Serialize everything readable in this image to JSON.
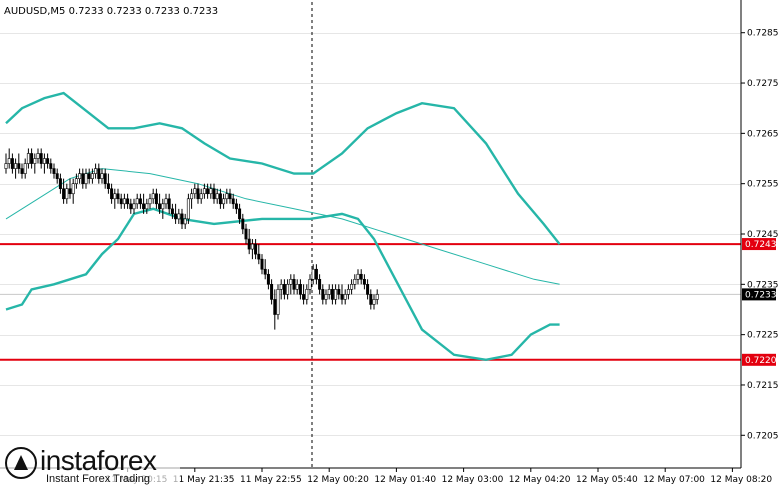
{
  "chart_data": {
    "type": "candlestick",
    "symbol_header": "AUDUSD,M5  0.7233 0.7233 0.7233 0.7233",
    "y_ticks": [
      "0.7285",
      "0.7275",
      "0.7265",
      "0.7255",
      "0.7245",
      "0.7235",
      "0.7225",
      "0.7215",
      "0.7205"
    ],
    "y_tick_values": [
      0.7285,
      0.7275,
      0.7265,
      0.7255,
      0.7245,
      0.7235,
      0.7225,
      0.7215,
      0.7205
    ],
    "ylim": [
      0.71985,
      0.72915
    ],
    "x_ticks": [
      "11 May 20:15",
      "11 May 21:35",
      "11 May 22:55",
      "12 May 00:20",
      "12 May 01:40",
      "12 May 03:00",
      "12 May 04:20",
      "12 May 05:40",
      "12 May 07:00",
      "12 May 08:20"
    ],
    "x_tick_index": [
      38,
      59,
      80,
      101,
      122,
      143,
      164,
      185,
      206,
      227
    ],
    "levels": [
      {
        "value": 0.7243,
        "label": "0.7243",
        "color": "#e3000f"
      },
      {
        "value": 0.722,
        "label": "0.7220",
        "color": "#e3000f"
      }
    ],
    "current_price": {
      "value": 0.7233,
      "label": "0.7233",
      "color": "#000000"
    },
    "bollinger": {
      "color": "#26b6a8",
      "upper": [
        [
          0,
          0.7267
        ],
        [
          5,
          0.727
        ],
        [
          12,
          0.7272
        ],
        [
          18,
          0.7273
        ],
        [
          26,
          0.7269
        ],
        [
          32,
          0.7266
        ],
        [
          40,
          0.7266
        ],
        [
          48,
          0.7267
        ],
        [
          55,
          0.7266
        ],
        [
          62,
          0.7263
        ],
        [
          70,
          0.726
        ],
        [
          80,
          0.7259
        ],
        [
          90,
          0.7257
        ],
        [
          96,
          0.7257
        ],
        [
          105,
          0.7261
        ],
        [
          113,
          0.7266
        ],
        [
          122,
          0.7269
        ],
        [
          130,
          0.7271
        ],
        [
          140,
          0.727
        ],
        [
          150,
          0.7263
        ],
        [
          160,
          0.7253
        ],
        [
          168,
          0.7247
        ],
        [
          173,
          0.7243
        ]
      ],
      "middle": [
        [
          0,
          0.7248
        ],
        [
          10,
          0.7252
        ],
        [
          20,
          0.7256
        ],
        [
          30,
          0.7258
        ],
        [
          45,
          0.7257
        ],
        [
          60,
          0.7255
        ],
        [
          75,
          0.7252
        ],
        [
          90,
          0.725
        ],
        [
          105,
          0.7248
        ],
        [
          120,
          0.7245
        ],
        [
          135,
          0.7242
        ],
        [
          150,
          0.7239
        ],
        [
          165,
          0.7236
        ],
        [
          173,
          0.7235
        ]
      ],
      "lower": [
        [
          0,
          0.723
        ],
        [
          5,
          0.7231
        ],
        [
          8,
          0.7234
        ],
        [
          15,
          0.7235
        ],
        [
          25,
          0.7237
        ],
        [
          30,
          0.7241
        ],
        [
          35,
          0.7244
        ],
        [
          40,
          0.7249
        ],
        [
          46,
          0.725
        ],
        [
          55,
          0.7248
        ],
        [
          65,
          0.7247
        ],
        [
          80,
          0.7248
        ],
        [
          95,
          0.7248
        ],
        [
          105,
          0.7249
        ],
        [
          110,
          0.7248
        ],
        [
          115,
          0.7244
        ],
        [
          125,
          0.7232
        ],
        [
          130,
          0.7226
        ],
        [
          140,
          0.7221
        ],
        [
          150,
          0.722
        ],
        [
          158,
          0.7221
        ],
        [
          164,
          0.7225
        ],
        [
          170,
          0.7227
        ],
        [
          173,
          0.7227
        ]
      ]
    },
    "candles": [
      [
        0.7258,
        0.7261,
        0.7257,
        0.7259
      ],
      [
        0.7259,
        0.7262,
        0.7258,
        0.726
      ],
      [
        0.726,
        0.7261,
        0.7257,
        0.7258
      ],
      [
        0.7258,
        0.726,
        0.7256,
        0.7259
      ],
      [
        0.7259,
        0.7261,
        0.7257,
        0.7258
      ],
      [
        0.7258,
        0.7259,
        0.7256,
        0.7257
      ],
      [
        0.7257,
        0.726,
        0.7256,
        0.7259
      ],
      [
        0.7259,
        0.7262,
        0.7258,
        0.7261
      ],
      [
        0.7261,
        0.7262,
        0.7258,
        0.7259
      ],
      [
        0.7259,
        0.7261,
        0.7257,
        0.726
      ],
      [
        0.726,
        0.7262,
        0.7259,
        0.7261
      ],
      [
        0.7261,
        0.7262,
        0.7258,
        0.7259
      ],
      [
        0.7259,
        0.7261,
        0.7257,
        0.726
      ],
      [
        0.726,
        0.7261,
        0.7258,
        0.7259
      ],
      [
        0.7259,
        0.726,
        0.7257,
        0.7258
      ],
      [
        0.7258,
        0.7259,
        0.7256,
        0.7257
      ],
      [
        0.7257,
        0.7258,
        0.7255,
        0.7256
      ],
      [
        0.7256,
        0.7257,
        0.7253,
        0.7254
      ],
      [
        0.7254,
        0.7256,
        0.7251,
        0.7252
      ],
      [
        0.7252,
        0.7255,
        0.7251,
        0.7254
      ],
      [
        0.7254,
        0.7256,
        0.7252,
        0.7253
      ],
      [
        0.7253,
        0.7256,
        0.7251,
        0.7255
      ],
      [
        0.7255,
        0.7257,
        0.7254,
        0.7256
      ],
      [
        0.7256,
        0.7258,
        0.7255,
        0.7257
      ],
      [
        0.7257,
        0.7258,
        0.7254,
        0.7255
      ],
      [
        0.7255,
        0.7258,
        0.7254,
        0.7257
      ],
      [
        0.7257,
        0.7258,
        0.7255,
        0.7256
      ],
      [
        0.7256,
        0.7258,
        0.7255,
        0.7257
      ],
      [
        0.7257,
        0.7259,
        0.7256,
        0.7258
      ],
      [
        0.7258,
        0.7259,
        0.7255,
        0.7256
      ],
      [
        0.7256,
        0.7258,
        0.7255,
        0.7257
      ],
      [
        0.7257,
        0.7258,
        0.7254,
        0.7255
      ],
      [
        0.7255,
        0.7257,
        0.7253,
        0.7254
      ],
      [
        0.7254,
        0.7255,
        0.7251,
        0.7252
      ],
      [
        0.7252,
        0.7254,
        0.725,
        0.7253
      ],
      [
        0.7253,
        0.7254,
        0.7251,
        0.7252
      ],
      [
        0.7252,
        0.7253,
        0.725,
        0.7251
      ],
      [
        0.7251,
        0.7253,
        0.725,
        0.7252
      ],
      [
        0.7252,
        0.7253,
        0.725,
        0.7251
      ],
      [
        0.7251,
        0.7252,
        0.7249,
        0.725
      ],
      [
        0.725,
        0.7252,
        0.7249,
        0.7251
      ],
      [
        0.7251,
        0.7253,
        0.725,
        0.7252
      ],
      [
        0.7252,
        0.7253,
        0.725,
        0.7251
      ],
      [
        0.7251,
        0.7253,
        0.7249,
        0.725
      ],
      [
        0.725,
        0.7252,
        0.7249,
        0.7251
      ],
      [
        0.7251,
        0.7253,
        0.725,
        0.7252
      ],
      [
        0.7252,
        0.7254,
        0.7251,
        0.7253
      ],
      [
        0.7253,
        0.7254,
        0.725,
        0.7251
      ],
      [
        0.7251,
        0.7253,
        0.7249,
        0.725
      ],
      [
        0.725,
        0.7252,
        0.7248,
        0.7251
      ],
      [
        0.7251,
        0.7253,
        0.725,
        0.7252
      ],
      [
        0.7252,
        0.7253,
        0.7249,
        0.725
      ],
      [
        0.725,
        0.7251,
        0.7248,
        0.7249
      ],
      [
        0.7249,
        0.7251,
        0.7247,
        0.7248
      ],
      [
        0.7248,
        0.725,
        0.7247,
        0.7249
      ],
      [
        0.7249,
        0.725,
        0.7246,
        0.7247
      ],
      [
        0.7247,
        0.7249,
        0.7246,
        0.7248
      ],
      [
        0.7248,
        0.7253,
        0.7247,
        0.7252
      ],
      [
        0.7252,
        0.7254,
        0.725,
        0.7253
      ],
      [
        0.7253,
        0.7255,
        0.7252,
        0.7254
      ],
      [
        0.7254,
        0.7255,
        0.7251,
        0.7252
      ],
      [
        0.7252,
        0.7254,
        0.7251,
        0.7253
      ],
      [
        0.7253,
        0.7255,
        0.7252,
        0.7254
      ],
      [
        0.7254,
        0.7255,
        0.7252,
        0.7253
      ],
      [
        0.7253,
        0.7255,
        0.7252,
        0.7254
      ],
      [
        0.7254,
        0.7255,
        0.7251,
        0.7252
      ],
      [
        0.7252,
        0.7254,
        0.7251,
        0.7253
      ],
      [
        0.7253,
        0.7254,
        0.725,
        0.7251
      ],
      [
        0.7251,
        0.7253,
        0.725,
        0.7252
      ],
      [
        0.7252,
        0.7254,
        0.7251,
        0.7253
      ],
      [
        0.7253,
        0.7254,
        0.7251,
        0.7252
      ],
      [
        0.7252,
        0.7253,
        0.725,
        0.7251
      ],
      [
        0.7251,
        0.7252,
        0.7249,
        0.725
      ],
      [
        0.725,
        0.7251,
        0.7247,
        0.7248
      ],
      [
        0.7248,
        0.7249,
        0.7245,
        0.7246
      ],
      [
        0.7246,
        0.7247,
        0.7243,
        0.7244
      ],
      [
        0.7244,
        0.7246,
        0.7241,
        0.7242
      ],
      [
        0.7242,
        0.7244,
        0.724,
        0.7243
      ],
      [
        0.7243,
        0.7244,
        0.724,
        0.7241
      ],
      [
        0.7241,
        0.7243,
        0.7239,
        0.724
      ],
      [
        0.724,
        0.7241,
        0.7237,
        0.7238
      ],
      [
        0.7238,
        0.724,
        0.7236,
        0.7237
      ],
      [
        0.7237,
        0.7238,
        0.7234,
        0.7235
      ],
      [
        0.7235,
        0.7236,
        0.7231,
        0.7232
      ],
      [
        0.7232,
        0.7234,
        0.7226,
        0.7229
      ],
      [
        0.7229,
        0.7235,
        0.7228,
        0.7234
      ],
      [
        0.7234,
        0.7236,
        0.7232,
        0.7235
      ],
      [
        0.7235,
        0.7236,
        0.7232,
        0.7233
      ],
      [
        0.7233,
        0.7236,
        0.7232,
        0.7235
      ],
      [
        0.7235,
        0.7237,
        0.7233,
        0.7236
      ],
      [
        0.7236,
        0.7237,
        0.7233,
        0.7234
      ],
      [
        0.7234,
        0.7236,
        0.7233,
        0.7235
      ],
      [
        0.7235,
        0.7236,
        0.7232,
        0.7233
      ],
      [
        0.7233,
        0.7235,
        0.7231,
        0.7232
      ],
      [
        0.7232,
        0.7235,
        0.7231,
        0.7234
      ],
      [
        0.7234,
        0.7237,
        0.7233,
        0.7236
      ],
      [
        0.7236,
        0.7239,
        0.7235,
        0.7238
      ],
      [
        0.7238,
        0.7239,
        0.7235,
        0.7236
      ],
      [
        0.7236,
        0.7237,
        0.7233,
        0.7234
      ],
      [
        0.7234,
        0.7235,
        0.7231,
        0.7232
      ],
      [
        0.7232,
        0.7234,
        0.7231,
        0.7233
      ],
      [
        0.7233,
        0.7235,
        0.7232,
        0.7234
      ],
      [
        0.7234,
        0.7235,
        0.7231,
        0.7232
      ],
      [
        0.7232,
        0.7235,
        0.7231,
        0.7234
      ],
      [
        0.7234,
        0.7235,
        0.7232,
        0.7233
      ],
      [
        0.7233,
        0.7235,
        0.7231,
        0.7232
      ],
      [
        0.7232,
        0.7234,
        0.7231,
        0.7233
      ],
      [
        0.7233,
        0.7235,
        0.7232,
        0.7234
      ],
      [
        0.7234,
        0.7236,
        0.7233,
        0.7235
      ],
      [
        0.7235,
        0.7237,
        0.7234,
        0.7236
      ],
      [
        0.7236,
        0.7238,
        0.7235,
        0.7237
      ],
      [
        0.7237,
        0.7238,
        0.7235,
        0.7236
      ],
      [
        0.7236,
        0.7237,
        0.7234,
        0.7235
      ],
      [
        0.7235,
        0.7236,
        0.7232,
        0.7233
      ],
      [
        0.7233,
        0.7234,
        0.723,
        0.7231
      ],
      [
        0.7231,
        0.7233,
        0.723,
        0.7232
      ],
      [
        0.7232,
        0.7234,
        0.7231,
        0.7233
      ]
    ]
  },
  "watermark": {
    "brand": "instaforex",
    "tagline": "Instant Forex Trading"
  }
}
